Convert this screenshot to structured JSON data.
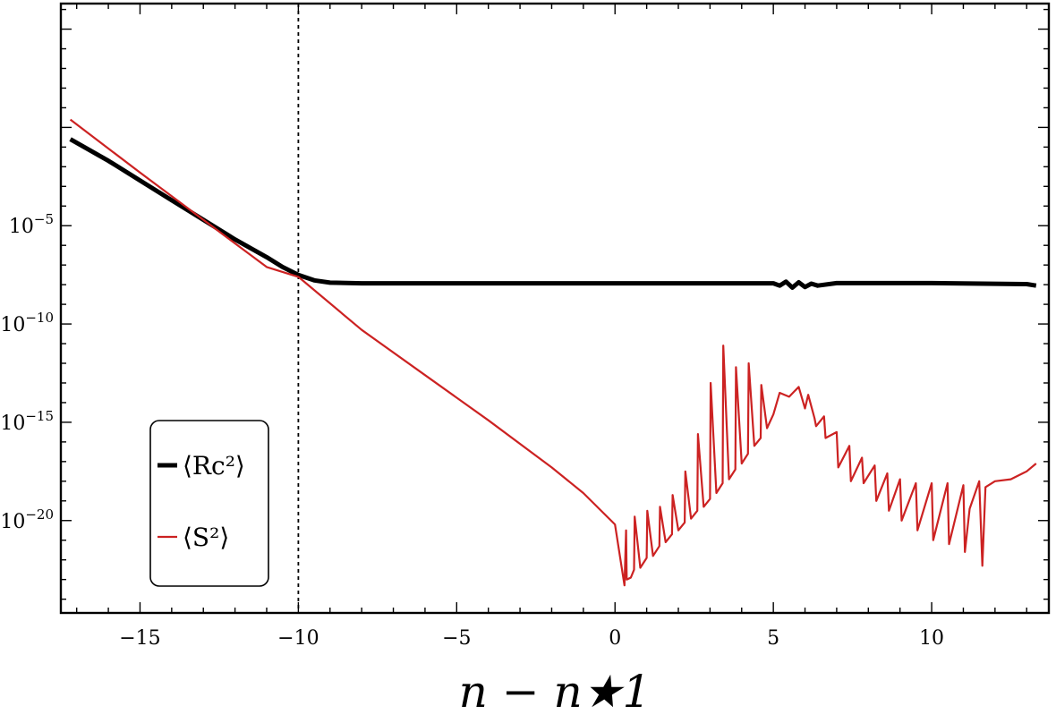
{
  "chart_data": {
    "type": "line",
    "xlabel": "n − n★1",
    "ylabel": "",
    "xlim": [
      -17.5,
      13.7
    ],
    "ylim": [
      -24.7,
      6.3
    ],
    "y_scale": "log10",
    "x_ticks": [
      -15,
      -10,
      -5,
      0,
      5,
      10
    ],
    "x_tick_labels": [
      "−15",
      "−10",
      "−5",
      "0",
      "5",
      "10"
    ],
    "y_ticks": [
      -5,
      -10,
      -15,
      -20
    ],
    "y_tick_labels": [
      {
        "base": "10",
        "exp": "−5"
      },
      {
        "base": "10",
        "exp": "−10"
      },
      {
        "base": "10",
        "exp": "−15"
      },
      {
        "base": "10",
        "exp": "−20"
      }
    ],
    "vline_x": -10,
    "legend_position": "bottom-left",
    "series": [
      {
        "name": "⟨Rc²⟩",
        "color": "#000000",
        "x": [
          -17.2,
          -16,
          -15,
          -14,
          -13,
          -12,
          -11,
          -10.5,
          -10,
          -9.5,
          -9,
          -8,
          -5,
          0,
          5,
          5.2,
          5.4,
          5.6,
          5.8,
          6,
          6.2,
          6.4,
          7,
          10,
          13,
          13.3
        ],
        "log10_y": [
          -0.6,
          -1.7,
          -2.7,
          -3.7,
          -4.7,
          -5.7,
          -6.6,
          -7.1,
          -7.5,
          -7.78,
          -7.9,
          -7.93,
          -7.93,
          -7.93,
          -7.93,
          -8.05,
          -7.85,
          -8.15,
          -7.88,
          -8.12,
          -7.95,
          -8.05,
          -7.92,
          -7.92,
          -7.97,
          -8.05
        ]
      },
      {
        "name": "⟨S²⟩",
        "color": "#cc2222",
        "x": [
          -17.2,
          -15,
          -13,
          -11,
          -10,
          -8,
          -6,
          -4,
          -2,
          -1,
          0,
          0.3,
          0.35,
          0.37,
          0.5,
          0.6,
          0.62,
          0.8,
          1,
          1.02,
          1.2,
          1.4,
          1.42,
          1.6,
          1.8,
          1.82,
          2,
          2.2,
          2.22,
          2.4,
          2.6,
          2.62,
          2.8,
          3,
          3.02,
          3.2,
          3.4,
          3.42,
          3.6,
          3.8,
          3.82,
          4,
          4.2,
          4.22,
          4.4,
          4.6,
          4.62,
          4.8,
          5,
          5.2,
          5.5,
          5.8,
          6,
          6.1,
          6.3,
          6.35,
          6.6,
          6.65,
          7,
          7.05,
          7.4,
          7.45,
          7.8,
          7.85,
          8.2,
          8.25,
          8.6,
          8.65,
          9,
          9.05,
          9.5,
          9.55,
          10,
          10.05,
          10.5,
          10.55,
          11,
          11.05,
          11.2,
          11.5,
          11.6,
          11.7,
          12,
          12.5,
          13,
          13.3
        ],
        "log10_y": [
          0.4,
          -2.3,
          -4.7,
          -7.1,
          -7.6,
          -10.3,
          -12.6,
          -14.9,
          -17.3,
          -18.6,
          -20.2,
          -23.3,
          -20.5,
          -23.0,
          -22.9,
          -22.5,
          -19.8,
          -22.4,
          -21.9,
          -19.5,
          -21.8,
          -21.3,
          -19.3,
          -21.1,
          -20.7,
          -18.7,
          -20.5,
          -20.1,
          -17.5,
          -19.9,
          -19.5,
          -15.6,
          -19.3,
          -18.9,
          -13.0,
          -18.6,
          -18.1,
          -11.1,
          -17.9,
          -17.4,
          -12.2,
          -17.1,
          -16.6,
          -12.0,
          -16.2,
          -15.8,
          -13.1,
          -15.3,
          -14.6,
          -13.5,
          -13.7,
          -13.2,
          -14.3,
          -13.6,
          -14.8,
          -15.2,
          -14.7,
          -15.8,
          -15.5,
          -17.3,
          -16.2,
          -18.0,
          -16.8,
          -18.1,
          -17.2,
          -19.0,
          -17.6,
          -19.5,
          -17.9,
          -20.0,
          -18.1,
          -20.5,
          -18.1,
          -21.0,
          -18.1,
          -21.2,
          -18.2,
          -21.6,
          -19.4,
          -18.0,
          -22.3,
          -18.3,
          -18.0,
          -17.9,
          -17.5,
          -17.1
        ]
      }
    ]
  }
}
